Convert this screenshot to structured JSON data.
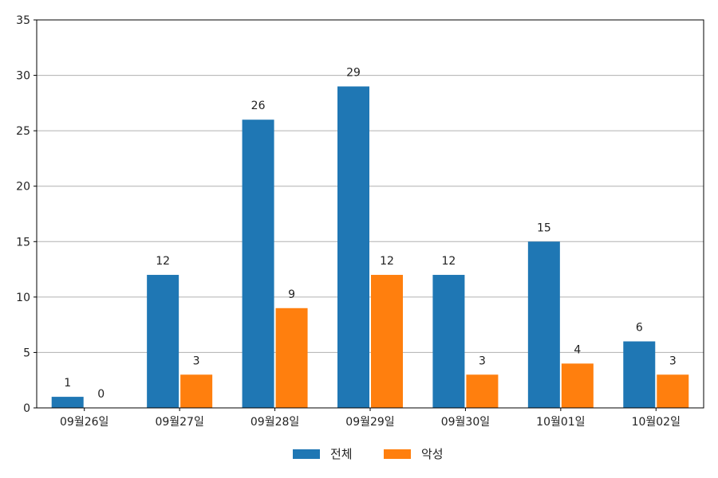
{
  "chart_data": {
    "type": "bar",
    "categories": [
      "09월26일",
      "09월27일",
      "09월28일",
      "09월29일",
      "09월30일",
      "10월01일",
      "10월02일"
    ],
    "series": [
      {
        "name": "전체",
        "color": "#1f77b4",
        "values": [
          1,
          12,
          26,
          29,
          12,
          15,
          6
        ]
      },
      {
        "name": "악성",
        "color": "#ff7f0e",
        "values": [
          0,
          3,
          9,
          12,
          3,
          4,
          3
        ]
      }
    ],
    "title": "",
    "xlabel": "",
    "ylabel": "",
    "ylim": [
      0,
      35
    ],
    "yticks": [
      0,
      5,
      10,
      15,
      20,
      25,
      30,
      35
    ],
    "grid": "horizontal",
    "legend_position": "bottom-center"
  }
}
